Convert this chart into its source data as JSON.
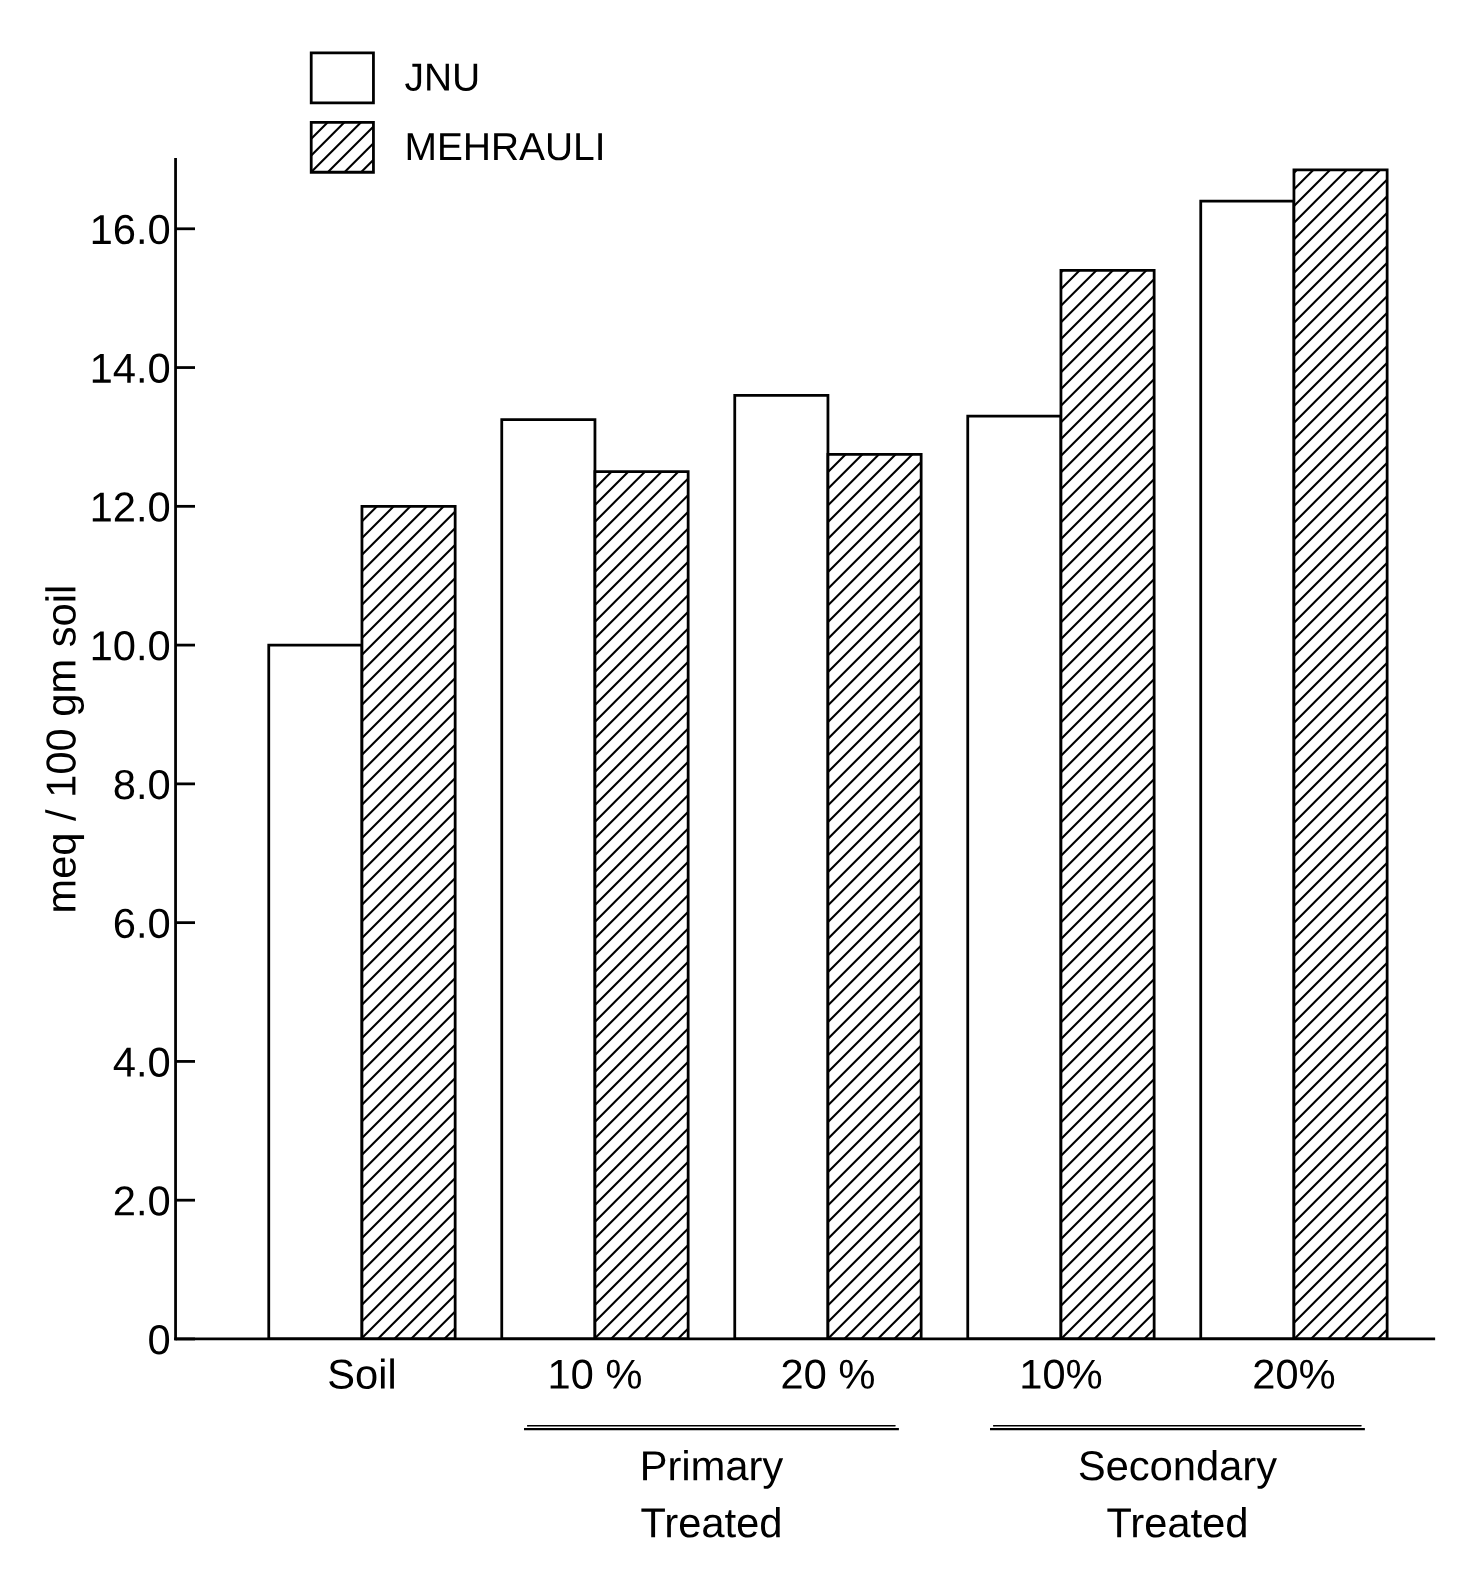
{
  "chart_data": {
    "type": "bar",
    "ylabel": "meq / 100 gm soil",
    "categories": [
      "Soil",
      "10 %",
      "20 %",
      "10%",
      "20%"
    ],
    "series": [
      {
        "name": "JNU",
        "color": "#000000",
        "values": [
          10.0,
          13.25,
          13.6,
          13.3,
          16.4
        ]
      },
      {
        "name": "MEHRAULI",
        "color": "#000000",
        "values": [
          12.0,
          12.5,
          12.75,
          15.4,
          16.85
        ]
      }
    ],
    "ylim": [
      0,
      17
    ],
    "yticks": [
      {
        "value": 0,
        "label": "0"
      },
      {
        "value": 2,
        "label": "2.0"
      },
      {
        "value": 4,
        "label": "4.0"
      },
      {
        "value": 6,
        "label": "6.0"
      },
      {
        "value": 8,
        "label": "8.0"
      },
      {
        "value": 10,
        "label": "10.0"
      },
      {
        "value": 12,
        "label": "12.0"
      },
      {
        "value": 14,
        "label": "14.0"
      },
      {
        "value": 16,
        "label": "16.0"
      }
    ],
    "annotations": [
      "Primary\nTreated",
      "Secondary\nTreated"
    ],
    "grid": false,
    "legend": "top left"
  }
}
